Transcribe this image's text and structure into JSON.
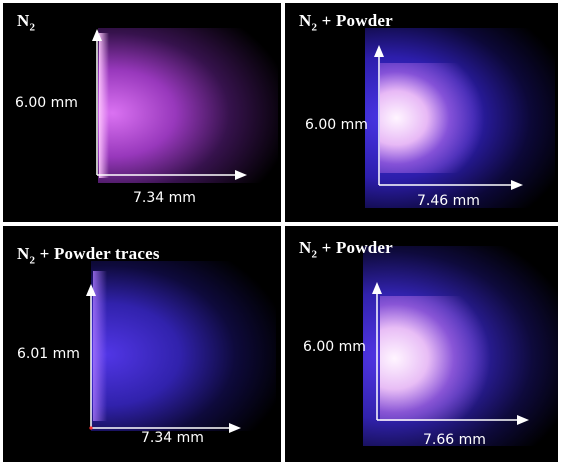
{
  "panels": [
    {
      "title_base": "N",
      "title_sub": "2",
      "title_suffix": "",
      "height_label": "6.00 mm",
      "width_label": "7.34 mm",
      "plasma_color": "#c24dff"
    },
    {
      "title_base": "N",
      "title_sub": "2",
      "title_suffix": " + Powder",
      "height_label": "6.00 mm",
      "width_label": "7.46 mm",
      "plasma_color": "#4a3cff"
    },
    {
      "title_base": "N",
      "title_sub": "2",
      "title_suffix": " + Powder traces",
      "height_label": "6.01 mm",
      "width_label": "7.34 mm",
      "plasma_color": "#3a2cff"
    },
    {
      "title_base": "N",
      "title_sub": "2",
      "title_suffix": " + Powder",
      "height_label": "6.00 mm",
      "width_label": "7.66 mm",
      "plasma_color": "#4a3cff"
    }
  ]
}
